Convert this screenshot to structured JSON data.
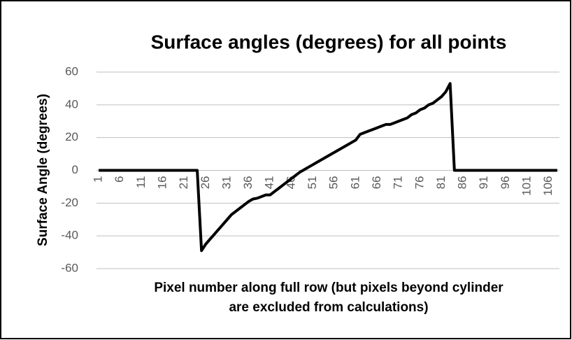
{
  "chart_data": {
    "type": "line",
    "title": "Surface angles (degrees) for all points",
    "ylabel": "Surface Angle (degrees)",
    "xlabel": [
      "Pixel number along full row (but pixels beyond cylinder",
      "are excluded from calculations)"
    ],
    "categories": [
      "1",
      null,
      null,
      null,
      null,
      "6",
      null,
      null,
      null,
      null,
      "11",
      null,
      null,
      null,
      null,
      "16",
      null,
      null,
      null,
      null,
      "21",
      null,
      null,
      null,
      null,
      "26",
      null,
      null,
      null,
      null,
      "31",
      null,
      null,
      null,
      null,
      "36",
      null,
      null,
      null,
      null,
      "41",
      null,
      null,
      null,
      null,
      "46",
      null,
      null,
      null,
      null,
      "51",
      null,
      null,
      null,
      null,
      "56",
      null,
      null,
      null,
      null,
      "61",
      null,
      null,
      null,
      null,
      "66",
      null,
      null,
      null,
      null,
      "71",
      null,
      null,
      null,
      null,
      "76",
      null,
      null,
      null,
      null,
      "81",
      null,
      null,
      null,
      null,
      "86",
      null,
      null,
      null,
      null,
      "91",
      null,
      null,
      null,
      null,
      "96",
      null,
      null,
      null,
      null,
      "101",
      null,
      null,
      null,
      null,
      "106",
      null,
      null
    ],
    "series": [
      {
        "color": "#000000",
        "values": [
          0,
          0,
          0,
          0,
          0,
          0,
          0,
          0,
          0,
          0,
          0,
          0,
          0,
          0,
          0,
          0,
          0,
          0,
          0,
          0,
          0,
          0,
          0,
          0,
          -49,
          -45,
          -42,
          -39,
          -36,
          -33,
          -30,
          -27,
          -25,
          -23,
          -21,
          -19,
          -17.5,
          -17,
          -16,
          -15,
          -15,
          -13,
          -11,
          -9,
          -7,
          -5,
          -3,
          -1,
          0.5,
          2,
          3.5,
          5,
          6.5,
          8,
          9.5,
          11,
          12.5,
          14,
          15.5,
          17,
          18.5,
          22,
          23,
          24,
          25,
          26,
          27,
          28,
          28,
          29,
          30,
          31,
          32,
          34,
          35,
          37,
          38,
          40,
          41,
          43,
          45,
          48,
          53,
          0,
          0,
          0,
          0,
          0,
          0,
          0,
          0,
          0,
          0,
          0,
          0,
          0,
          0,
          0,
          0,
          0,
          0,
          0,
          0,
          0,
          0,
          0,
          0,
          0
        ]
      }
    ],
    "ylim": [
      -60,
      60
    ],
    "yticks": [
      -60,
      -40,
      -20,
      0,
      20,
      40,
      60
    ],
    "grid": true
  }
}
